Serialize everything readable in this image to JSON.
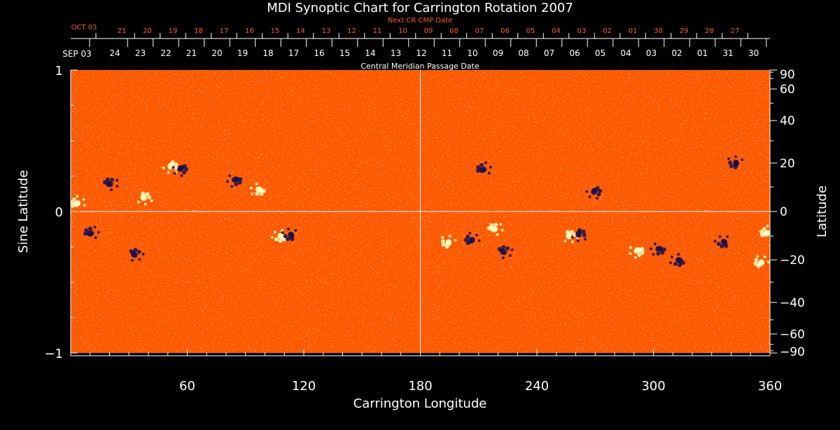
{
  "colors": {
    "background": "#000000",
    "foreground": "#ffffff",
    "next_cr_label": "#ff5a1e",
    "map_base": "#ff5a00",
    "positive_polarity": "#ffffc0",
    "negative_polarity": "#1a1050"
  },
  "chart_data": {
    "type": "heatmap",
    "title": "MDI Synoptic Chart for Carrington Rotation 2007",
    "xlabel": "Carrington Longitude",
    "ylabel_left": "Sine Latitude",
    "ylabel_right": "Latitude",
    "xlim": [
      0,
      360
    ],
    "ylim": [
      -1,
      1
    ],
    "grid": false,
    "x_ticks": [
      60,
      120,
      180,
      240,
      300,
      360
    ],
    "y_left_ticks": [
      "1",
      "0",
      "−1"
    ],
    "y_right_ticks": [
      90,
      60,
      40,
      20,
      0,
      -20,
      -40,
      -60,
      -90
    ],
    "reference_lines": {
      "longitude": 180,
      "sine_latitude": 0
    },
    "top_axis_main": {
      "label": "Central Meridian Passage Date",
      "month_label": "SEP 03",
      "days": [
        "24",
        "23",
        "22",
        "21",
        "20",
        "19",
        "18",
        "17",
        "16",
        "15",
        "14",
        "13",
        "12",
        "11",
        "10",
        "09",
        "08",
        "07",
        "06",
        "05",
        "04",
        "03",
        "02",
        "01",
        "31",
        "30"
      ]
    },
    "top_axis_next": {
      "label": "Next CR CMP Date",
      "month_label": "OCT 03",
      "days": [
        "21",
        "20",
        "19",
        "18",
        "17",
        "16",
        "15",
        "14",
        "13",
        "12",
        "11",
        "10",
        "09",
        "08",
        "07",
        "06",
        "05",
        "04",
        "03",
        "02",
        "01",
        "30",
        "29",
        "28",
        "27"
      ]
    },
    "active_regions": [
      {
        "lon": 3,
        "sinlat": 0.06,
        "polarity": "positive"
      },
      {
        "lon": 10,
        "sinlat": -0.15,
        "polarity": "negative"
      },
      {
        "lon": 20,
        "sinlat": 0.2,
        "polarity": "negative"
      },
      {
        "lon": 33,
        "sinlat": -0.3,
        "polarity": "negative"
      },
      {
        "lon": 38,
        "sinlat": 0.1,
        "polarity": "positive"
      },
      {
        "lon": 52,
        "sinlat": 0.32,
        "polarity": "positive"
      },
      {
        "lon": 57,
        "sinlat": 0.3,
        "polarity": "negative"
      },
      {
        "lon": 85,
        "sinlat": 0.22,
        "polarity": "negative"
      },
      {
        "lon": 97,
        "sinlat": 0.15,
        "polarity": "positive"
      },
      {
        "lon": 108,
        "sinlat": -0.18,
        "polarity": "positive"
      },
      {
        "lon": 113,
        "sinlat": -0.17,
        "polarity": "negative"
      },
      {
        "lon": 194,
        "sinlat": -0.22,
        "polarity": "positive"
      },
      {
        "lon": 206,
        "sinlat": -0.2,
        "polarity": "negative"
      },
      {
        "lon": 212,
        "sinlat": 0.3,
        "polarity": "negative"
      },
      {
        "lon": 218,
        "sinlat": -0.12,
        "polarity": "positive"
      },
      {
        "lon": 223,
        "sinlat": -0.28,
        "polarity": "negative"
      },
      {
        "lon": 257,
        "sinlat": -0.17,
        "polarity": "positive"
      },
      {
        "lon": 262,
        "sinlat": -0.16,
        "polarity": "negative"
      },
      {
        "lon": 270,
        "sinlat": 0.14,
        "polarity": "negative"
      },
      {
        "lon": 292,
        "sinlat": -0.28,
        "polarity": "positive"
      },
      {
        "lon": 303,
        "sinlat": -0.27,
        "polarity": "negative"
      },
      {
        "lon": 313,
        "sinlat": -0.35,
        "polarity": "negative"
      },
      {
        "lon": 336,
        "sinlat": -0.22,
        "polarity": "negative"
      },
      {
        "lon": 342,
        "sinlat": 0.34,
        "polarity": "negative"
      },
      {
        "lon": 355,
        "sinlat": -0.36,
        "polarity": "positive"
      },
      {
        "lon": 358,
        "sinlat": -0.15,
        "polarity": "positive"
      }
    ]
  }
}
